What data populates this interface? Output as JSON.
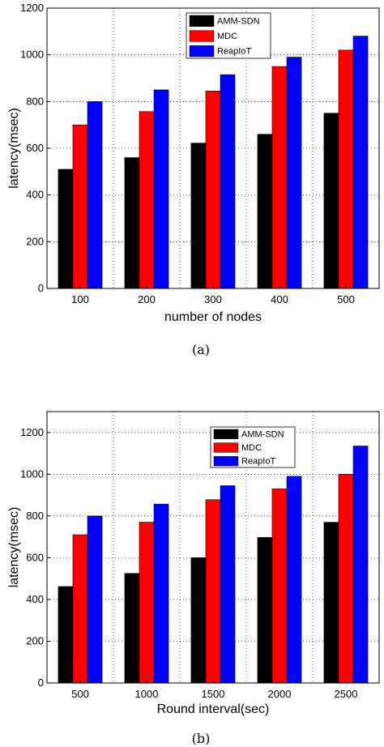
{
  "figure": {
    "caption_a": "(a)",
    "caption_b": "(b)"
  },
  "chart_data": [
    {
      "type": "bar",
      "title": "",
      "xlabel": "number of nodes",
      "ylabel": "latency(msec)",
      "categories": [
        "100",
        "200",
        "300",
        "400",
        "500"
      ],
      "ylim": [
        0,
        1200
      ],
      "yticks": [
        0,
        200,
        400,
        600,
        800,
        1000,
        1200
      ],
      "grid": true,
      "legend_position": "top-right",
      "series": [
        {
          "name": "AMM-SDN",
          "color": "#000000",
          "values": [
            510,
            560,
            622,
            660,
            750
          ]
        },
        {
          "name": "MDC",
          "color": "#ff0000",
          "values": [
            700,
            757,
            845,
            950,
            1020
          ]
        },
        {
          "name": "ReapIoT",
          "color": "#0000ff",
          "values": [
            800,
            850,
            915,
            990,
            1080
          ]
        }
      ]
    },
    {
      "type": "bar",
      "title": "",
      "xlabel": "Round interval(sec)",
      "ylabel": "latency(msec)",
      "categories": [
        "500",
        "1000",
        "1500",
        "2000",
        "2500"
      ],
      "ylim": [
        0,
        1300
      ],
      "yticks": [
        0,
        200,
        400,
        600,
        800,
        1000,
        1200
      ],
      "grid": true,
      "legend_position": "top-right",
      "series": [
        {
          "name": "AMM-SDN",
          "color": "#000000",
          "values": [
            462,
            525,
            600,
            697,
            770
          ]
        },
        {
          "name": "MDC",
          "color": "#ff0000",
          "values": [
            710,
            770,
            878,
            930,
            1000
          ]
        },
        {
          "name": "ReapIoT",
          "color": "#0000ff",
          "values": [
            800,
            857,
            945,
            990,
            1135
          ]
        }
      ]
    }
  ]
}
